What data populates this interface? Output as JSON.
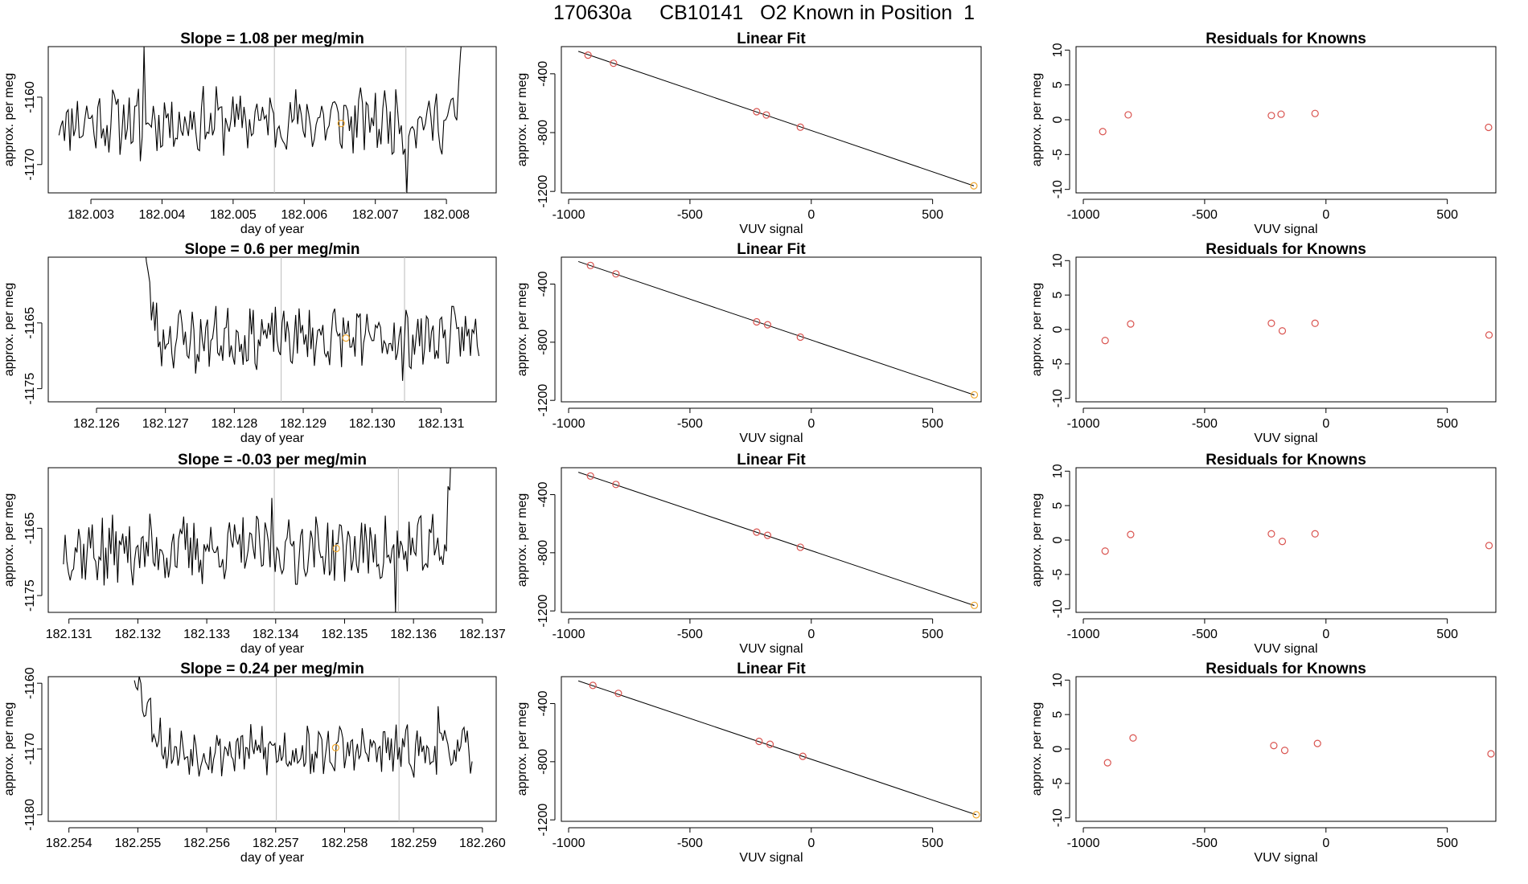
{
  "page": {
    "title": "170630a     CB10141   O2 Known in Position  1"
  },
  "chart_data": [
    {
      "row": 1,
      "panel": "time",
      "type": "line",
      "title": "Slope =  1.08  per meg/min",
      "xlabel": "day of year",
      "ylabel": "approx. per meg",
      "xlim": [
        182.0024,
        182.0087
      ],
      "ylim": [
        -1174.2,
        -1152.5
      ],
      "xticks": [
        182.003,
        182.004,
        182.005,
        182.006,
        182.007,
        182.008
      ],
      "xtick_labels": [
        "182.003",
        "182.004",
        "182.005",
        "182.006",
        "182.007",
        "182.008"
      ],
      "yticks": [
        -1170,
        -1160
      ],
      "ytick_labels": [
        "-1170",
        "-1160"
      ],
      "x_start": 182.00255,
      "x_end": 182.00825,
      "n_points": 220,
      "base_level": -1163.5,
      "noise_amplitude": 2.6,
      "seed": 11,
      "start_excursion": null,
      "end_excursion": {
        "from_x": 182.0081,
        "to_y": -1150
      },
      "spikes": [
        {
          "x": 182.00375,
          "y": -1152.5
        },
        {
          "x": 182.00745,
          "y": -1174.2
        },
        {
          "x": 182.0037,
          "y": -1169.5
        }
      ],
      "vlines": [
        182.00558,
        182.00743
      ],
      "marker": {
        "x": 182.00652,
        "y": -1163.9
      }
    },
    {
      "row": 1,
      "panel": "fit",
      "type": "scatter",
      "title": "Linear Fit",
      "xlabel": "VUV signal",
      "ylabel": "approx. per meg",
      "xlim": [
        -1030,
        700
      ],
      "ylim": [
        -1210,
        -215
      ],
      "xticks": [
        -1000,
        -500,
        0,
        500
      ],
      "xtick_labels": [
        "-1000",
        "-500",
        "0",
        "500"
      ],
      "yticks": [
        -1200,
        -800,
        -400
      ],
      "ytick_labels": [
        "-1200",
        "-800",
        "-400"
      ],
      "x": [
        -920,
        -815,
        -225,
        -185,
        -45,
        670
      ],
      "y": [
        -273,
        -328,
        -658,
        -680,
        -763,
        -1162
      ],
      "fit_line": {
        "x": [
          -960,
          670
        ],
        "y": [
          -247,
          -1162
        ]
      }
    },
    {
      "row": 1,
      "panel": "residuals",
      "type": "scatter",
      "title": "Residuals for Knowns",
      "xlabel": "VUV signal",
      "ylabel": "approx. per meg",
      "xlim": [
        -1030,
        700
      ],
      "ylim": [
        -10.5,
        10.5
      ],
      "xticks": [
        -1000,
        -500,
        0,
        500
      ],
      "xtick_labels": [
        "-1000",
        "-500",
        "0",
        "500"
      ],
      "yticks": [
        -10,
        -5,
        0,
        5,
        10
      ],
      "ytick_labels": [
        "-10",
        "-5",
        "0",
        "5",
        "10"
      ],
      "x": [
        -920,
        -815,
        -225,
        -185,
        -45,
        670
      ],
      "y": [
        -1.7,
        0.7,
        0.6,
        0.8,
        0.9,
        -1.1
      ]
    },
    {
      "row": 2,
      "panel": "time",
      "type": "line",
      "title": "Slope =  0.6  per meg/min",
      "xlabel": "day of year",
      "ylabel": "approx. per meg",
      "xlim": [
        182.1253,
        182.1318
      ],
      "ylim": [
        -1177,
        -1155
      ],
      "xticks": [
        182.126,
        182.127,
        182.128,
        182.129,
        182.13,
        182.131
      ],
      "xtick_labels": [
        "182.126",
        "182.127",
        "182.128",
        "182.129",
        "182.130",
        "182.131"
      ],
      "yticks": [
        -1175,
        -1165
      ],
      "ytick_labels": [
        "-1175",
        "-1165"
      ],
      "x_start": 182.12665,
      "x_end": 182.13155,
      "n_points": 200,
      "base_level": -1167.2,
      "noise_amplitude": 2.4,
      "seed": 23,
      "start_excursion": {
        "to_x": 182.1269,
        "from_y": -1150
      },
      "end_excursion": null,
      "spikes": [
        {
          "x": 182.12745,
          "y": -1172.7
        },
        {
          "x": 182.13045,
          "y": -1173.8
        },
        {
          "x": 182.12985,
          "y": -1171.5
        }
      ],
      "vlines": [
        182.12868,
        182.13047
      ],
      "marker": {
        "x": 182.12962,
        "y": -1167.3
      }
    },
    {
      "row": 2,
      "panel": "fit",
      "type": "scatter",
      "title": "Linear Fit",
      "xlabel": "VUV signal",
      "ylabel": "approx. per meg",
      "xlim": [
        -1030,
        700
      ],
      "ylim": [
        -1210,
        -215
      ],
      "xticks": [
        -1000,
        -500,
        0,
        500
      ],
      "xtick_labels": [
        "-1000",
        "-500",
        "0",
        "500"
      ],
      "yticks": [
        -1200,
        -800,
        -400
      ],
      "ytick_labels": [
        "-1200",
        "-800",
        "-400"
      ],
      "x": [
        -910,
        -805,
        -225,
        -180,
        -45,
        672
      ],
      "y": [
        -272,
        -330,
        -660,
        -680,
        -765,
        -1162
      ],
      "fit_line": {
        "x": [
          -960,
          672
        ],
        "y": [
          -245,
          -1163
        ]
      }
    },
    {
      "row": 2,
      "panel": "residuals",
      "type": "scatter",
      "title": "Residuals for Knowns",
      "xlabel": "VUV signal",
      "ylabel": "approx. per meg",
      "xlim": [
        -1030,
        700
      ],
      "ylim": [
        -10.5,
        10.5
      ],
      "xticks": [
        -1000,
        -500,
        0,
        500
      ],
      "xtick_labels": [
        "-1000",
        "-500",
        "0",
        "500"
      ],
      "yticks": [
        -10,
        -5,
        0,
        5,
        10
      ],
      "ytick_labels": [
        "-10",
        "-5",
        "0",
        "5",
        "10"
      ],
      "x": [
        -910,
        -805,
        -225,
        -180,
        -45,
        672
      ],
      "y": [
        -1.6,
        0.8,
        0.9,
        -0.2,
        0.9,
        -0.8
      ]
    },
    {
      "row": 3,
      "panel": "time",
      "type": "line",
      "title": "Slope =  -0.03  per meg/min",
      "xlabel": "day of year",
      "ylabel": "approx. per meg",
      "xlim": [
        182.1307,
        182.1372
      ],
      "ylim": [
        -1177.5,
        -1156
      ],
      "xticks": [
        182.131,
        182.132,
        182.133,
        182.134,
        182.135,
        182.136,
        182.137
      ],
      "xtick_labels": [
        "182.131",
        "182.132",
        "182.133",
        "182.134",
        "182.135",
        "182.136",
        "182.137"
      ],
      "yticks": [
        -1175,
        -1165
      ],
      "ytick_labels": [
        "-1175",
        "-1165"
      ],
      "x_start": 182.13092,
      "x_end": 182.13655,
      "n_points": 230,
      "base_level": -1168.2,
      "noise_amplitude": 2.7,
      "seed": 37,
      "start_excursion": null,
      "end_excursion": {
        "from_x": 182.13645,
        "to_y": -1150
      },
      "spikes": [
        {
          "x": 182.13575,
          "y": -1177.5
        },
        {
          "x": 182.13395,
          "y": -1160.5
        },
        {
          "x": 182.1315,
          "y": -1173.5
        }
      ],
      "vlines": [
        182.13398,
        182.13578
      ],
      "marker": {
        "x": 182.13488,
        "y": -1168
      }
    },
    {
      "row": 3,
      "panel": "fit",
      "type": "scatter",
      "title": "Linear Fit",
      "xlabel": "VUV signal",
      "ylabel": "approx. per meg",
      "xlim": [
        -1030,
        700
      ],
      "ylim": [
        -1210,
        -215
      ],
      "xticks": [
        -1000,
        -500,
        0,
        500
      ],
      "xtick_labels": [
        "-1000",
        "-500",
        "0",
        "500"
      ],
      "yticks": [
        -1200,
        -800,
        -400
      ],
      "ytick_labels": [
        "-1200",
        "-800",
        "-400"
      ],
      "x": [
        -910,
        -805,
        -225,
        -180,
        -45,
        672
      ],
      "y": [
        -272,
        -330,
        -658,
        -680,
        -762,
        -1162
      ],
      "fit_line": {
        "x": [
          -960,
          672
        ],
        "y": [
          -246,
          -1163
        ]
      }
    },
    {
      "row": 3,
      "panel": "residuals",
      "type": "scatter",
      "title": "Residuals for Knowns",
      "xlabel": "VUV signal",
      "ylabel": "approx. per meg",
      "xlim": [
        -1030,
        700
      ],
      "ylim": [
        -10.5,
        10.5
      ],
      "xticks": [
        -1000,
        -500,
        0,
        500
      ],
      "xtick_labels": [
        "-1000",
        "-500",
        "0",
        "500"
      ],
      "yticks": [
        -10,
        -5,
        0,
        5,
        10
      ],
      "ytick_labels": [
        "-10",
        "-5",
        "0",
        "5",
        "10"
      ],
      "x": [
        -910,
        -805,
        -225,
        -180,
        -45,
        672
      ],
      "y": [
        -1.6,
        0.8,
        0.9,
        -0.2,
        0.9,
        -0.8
      ]
    },
    {
      "row": 4,
      "panel": "time",
      "type": "line",
      "title": "Slope =  0.24  per meg/min",
      "xlabel": "day of year",
      "ylabel": "approx. per meg",
      "xlim": [
        182.2537,
        182.2602
      ],
      "ylim": [
        -1181,
        -1159
      ],
      "xticks": [
        182.254,
        182.255,
        182.256,
        182.257,
        182.258,
        182.259,
        182.26
      ],
      "xtick_labels": [
        "182.254",
        "182.255",
        "182.256",
        "182.257",
        "182.258",
        "182.259",
        "182.260"
      ],
      "yticks": [
        -1180,
        -1170,
        -1160
      ],
      "ytick_labels": [
        "-1180",
        "-1170",
        "-1160"
      ],
      "x_start": 182.25495,
      "x_end": 182.25985,
      "n_points": 210,
      "base_level": -1170.3,
      "noise_amplitude": 2.0,
      "seed": 53,
      "start_excursion": {
        "to_x": 182.25545,
        "from_y": -1158
      },
      "end_excursion": null,
      "spikes": [
        {
          "x": 182.25935,
          "y": -1163.5
        },
        {
          "x": 182.2575,
          "y": -1173.8
        },
        {
          "x": 182.2568,
          "y": -1166.5
        }
      ],
      "vlines": [
        182.25701,
        182.25879
      ],
      "marker": {
        "x": 182.25787,
        "y": -1169.8
      }
    },
    {
      "row": 4,
      "panel": "fit",
      "type": "scatter",
      "title": "Linear Fit",
      "xlabel": "VUV signal",
      "ylabel": "approx. per meg",
      "xlim": [
        -1030,
        700
      ],
      "ylim": [
        -1210,
        -215
      ],
      "xticks": [
        -1000,
        -500,
        0,
        500
      ],
      "xtick_labels": [
        "-1000",
        "-500",
        "0",
        "500"
      ],
      "yticks": [
        -1200,
        -800,
        -400
      ],
      "ytick_labels": [
        "-1200",
        "-800",
        "-400"
      ],
      "x": [
        -900,
        -795,
        -215,
        -170,
        -35,
        680
      ],
      "y": [
        -275,
        -330,
        -660,
        -680,
        -763,
        -1165
      ],
      "fit_line": {
        "x": [
          -960,
          680
        ],
        "y": [
          -244,
          -1165
        ]
      }
    },
    {
      "row": 4,
      "panel": "residuals",
      "type": "scatter",
      "title": "Residuals for Knowns",
      "xlabel": "VUV signal",
      "ylabel": "approx. per meg",
      "xlim": [
        -1030,
        700
      ],
      "ylim": [
        -10.5,
        10.5
      ],
      "xticks": [
        -1000,
        -500,
        0,
        500
      ],
      "xtick_labels": [
        "-1000",
        "-500",
        "0",
        "500"
      ],
      "yticks": [
        -10,
        -5,
        0,
        5,
        10
      ],
      "ytick_labels": [
        "-10",
        "-5",
        "0",
        "5",
        "10"
      ],
      "x": [
        -900,
        -795,
        -215,
        -170,
        -35,
        680
      ],
      "y": [
        -2.0,
        1.6,
        0.5,
        -0.2,
        0.8,
        -0.7
      ]
    }
  ],
  "colors": {
    "line": "#000000",
    "fit_points": "#d9534f",
    "residual_points": "#d9534f",
    "endpoint_marker": "#f0a830",
    "vline": "#bbbbbb"
  }
}
